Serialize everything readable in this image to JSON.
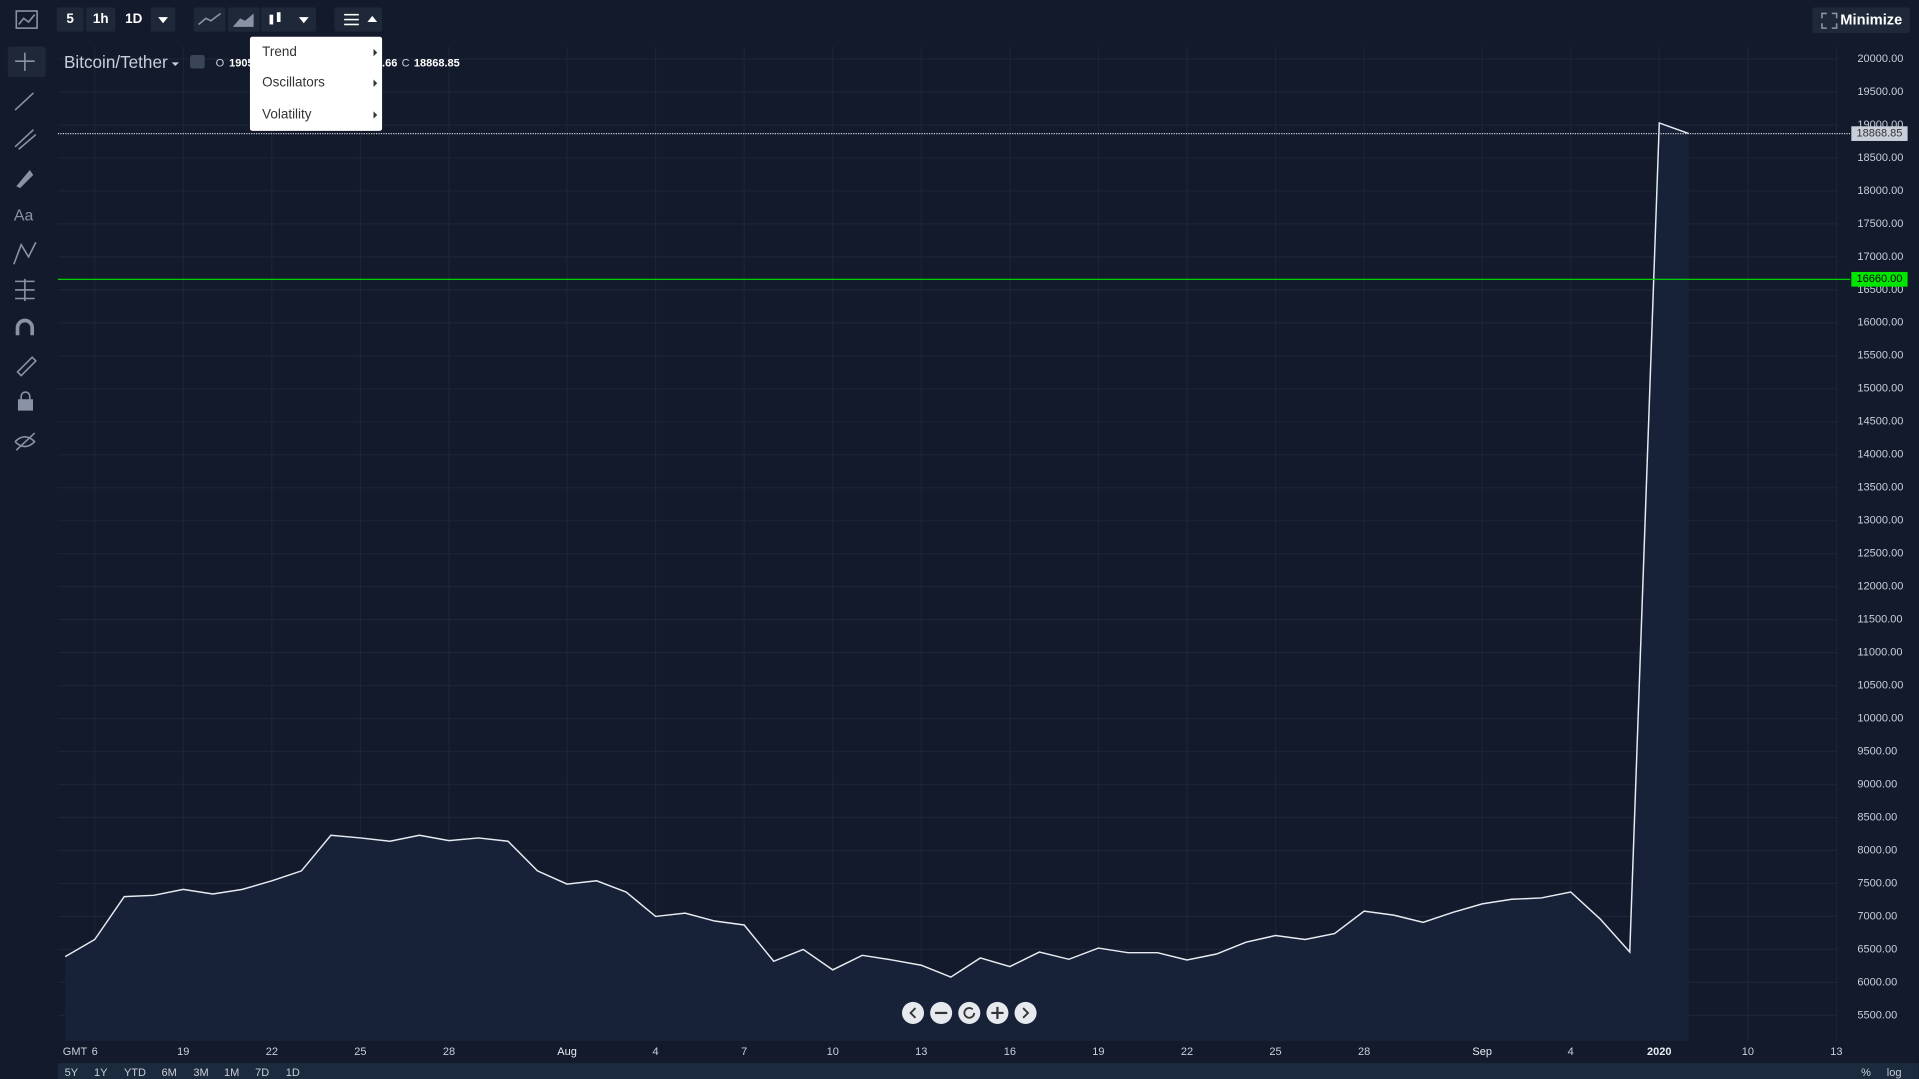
{
  "toolbar": {
    "intervals": [
      "5",
      "1h",
      "1D"
    ],
    "minimize": "Minimize"
  },
  "menu": {
    "items": [
      "Trend",
      "Oscillators",
      "Volatility"
    ]
  },
  "header": {
    "symbol": "Bitcoin/Tether",
    "open_label": "O",
    "open_fragment": "1905",
    "close_fragment": ".66",
    "close_label": "C"
  },
  "range_bar": {
    "ranges": [
      "5Y",
      "1Y",
      "YTD",
      "6M",
      "3M",
      "1M",
      "7D",
      "1D"
    ],
    "percent": "%",
    "log": "log"
  },
  "chart_data": {
    "type": "line",
    "color": "#e8ecf2",
    "area_color": "#172239",
    "grid": true,
    "categories": [
      null,
      "6",
      null,
      null,
      "19",
      null,
      null,
      "22",
      null,
      null,
      "25",
      null,
      null,
      "28",
      null,
      null,
      null,
      "Aug",
      null,
      null,
      "4",
      null,
      null,
      "7",
      null,
      null,
      "10",
      null,
      null,
      "13",
      null,
      null,
      "16",
      null,
      null,
      "19",
      null,
      null,
      "22",
      null,
      null,
      "25",
      null,
      null,
      "28",
      null,
      null,
      null,
      "Sep",
      null,
      null,
      "4",
      null,
      null,
      "2020",
      null,
      null,
      "10",
      null,
      null,
      "13"
    ],
    "values": [
      6390,
      6650,
      7300,
      7320,
      7410,
      7340,
      7410,
      7540,
      7690,
      8230,
      8190,
      8140,
      8230,
      8150,
      8190,
      8140,
      7690,
      7490,
      7540,
      7370,
      7000,
      7050,
      6930,
      6870,
      6320,
      6500,
      6190,
      6410,
      6340,
      6260,
      6080,
      6370,
      6240,
      6460,
      6350,
      6520,
      6450,
      6450,
      6340,
      6430,
      6610,
      6710,
      6650,
      6740,
      7080,
      7020,
      6910,
      7060,
      7190,
      7260,
      7280,
      7370,
      6960,
      6460,
      19030,
      18870,
      null,
      null,
      null,
      null,
      null
    ],
    "x_axis_label": "GMT",
    "ylim": [
      5110,
      20190
    ],
    "yticks": [
      {
        "value": 5500,
        "label": "5500.00"
      },
      {
        "value": 6000,
        "label": "6000.00"
      },
      {
        "value": 6500,
        "label": "6500.00"
      },
      {
        "value": 7000,
        "label": "7000.00"
      },
      {
        "value": 7500,
        "label": "7500.00"
      },
      {
        "value": 8000,
        "label": "8000.00"
      },
      {
        "value": 8500,
        "label": "8500.00"
      },
      {
        "value": 9000,
        "label": "9000.00"
      },
      {
        "value": 9500,
        "label": "9500.00"
      },
      {
        "value": 10000,
        "label": "10000.00"
      },
      {
        "value": 10500,
        "label": "10500.00"
      },
      {
        "value": 11000,
        "label": "11000.00"
      },
      {
        "value": 11500,
        "label": "11500.00"
      },
      {
        "value": 12000,
        "label": "12000.00"
      },
      {
        "value": 12500,
        "label": "12500.00"
      },
      {
        "value": 13000,
        "label": "13000.00"
      },
      {
        "value": 13500,
        "label": "13500.00"
      },
      {
        "value": 14000,
        "label": "14000.00"
      },
      {
        "value": 14500,
        "label": "14500.00"
      },
      {
        "value": 15000,
        "label": "15000.00"
      },
      {
        "value": 15500,
        "label": "15500.00"
      },
      {
        "value": 16000,
        "label": "16000.00"
      },
      {
        "value": 16500,
        "label": "16500.00"
      },
      {
        "value": 17000,
        "label": "17000.00"
      },
      {
        "value": 17500,
        "label": "17500.00"
      },
      {
        "value": 18000,
        "label": "18000.00"
      },
      {
        "value": 18500,
        "label": "18500.00"
      },
      {
        "value": 19000,
        "label": "19000.00"
      },
      {
        "value": 19500,
        "label": "19500.00"
      },
      {
        "value": 20000,
        "label": "20000.00"
      }
    ],
    "last_price": 18868.85,
    "hline": {
      "value": 16660,
      "label": "16660.00",
      "color": "#00e600"
    }
  }
}
